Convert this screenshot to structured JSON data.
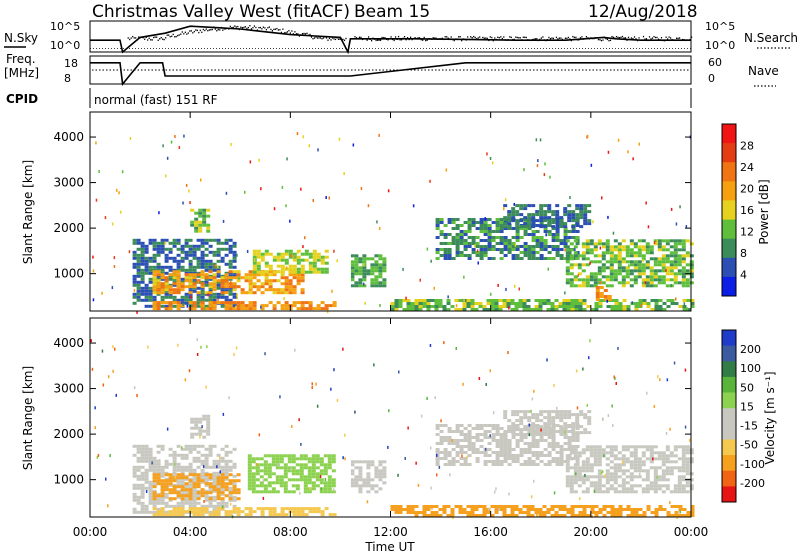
{
  "header": {
    "title": "Christmas Valley West (fitACF)",
    "beam": "Beam 15",
    "date": "12/Aug/2018"
  },
  "top_panels": {
    "nsky_label": "N.Sky",
    "nsky_ticks": [
      "10^5",
      "10^0"
    ],
    "nsearch_label": "N.Search",
    "nsearch_ticks": [
      "10^5",
      "10^0"
    ],
    "freq_label_1": "Freq.",
    "freq_label_2": "[MHz]",
    "freq_ticks": [
      "18",
      "8"
    ],
    "nave_label": "Nave",
    "nave_ticks": [
      "60",
      "0"
    ],
    "cpid_label": "CPID",
    "cpid_text": "normal (fast) 151 RF"
  },
  "colors": {
    "power": [
      "#0a1ee6",
      "#2c4fb4",
      "#3c8c5a",
      "#5fbf3c",
      "#e6d21e",
      "#f5a00f",
      "#f07314",
      "#e63c14",
      "#f01414"
    ],
    "velocity": [
      "#e61414",
      "#f06414",
      "#f5a01e",
      "#f5c850",
      "#c8c8c0",
      "#c8c8c0",
      "#8cd250",
      "#5ab43c",
      "#327d46",
      "#3c5aa0",
      "#1e3cc8"
    ]
  },
  "chart_data": [
    {
      "type": "line",
      "name": "N.Sky / N.Search",
      "x": [
        0,
        1.2,
        1.3,
        2,
        3,
        4,
        5,
        6,
        7,
        8,
        9,
        10,
        10.3,
        10.4,
        11,
        13,
        15,
        17,
        19,
        20.5,
        21,
        22,
        24
      ],
      "values": [
        0.35,
        0.35,
        -1,
        0.45,
        0.6,
        0.85,
        0.8,
        0.75,
        0.65,
        0.55,
        0.5,
        0.45,
        -1,
        0.4,
        0.4,
        0.4,
        0.38,
        0.35,
        0.35,
        0.45,
        0.4,
        0.35,
        0.35
      ]
    },
    {
      "type": "line",
      "name": "Freq / Nave",
      "x": [
        0,
        1.2,
        1.3,
        2,
        2.9,
        3,
        10.3,
        10.4,
        15,
        24
      ],
      "values": [
        0.8,
        0.8,
        0,
        0.8,
        0.8,
        0.25,
        0.25,
        0.25,
        0.8,
        0.8
      ]
    },
    {
      "type": "heatmap",
      "title": "Power",
      "xlabel": "Time UT",
      "ylabel": "Slant Range [km]",
      "colorbar_label": "Power [dB]",
      "colorbar_ticks": [
        "28",
        "24",
        "20",
        "16",
        "12",
        "8",
        "4"
      ],
      "xlim": [
        0,
        24
      ],
      "ylim": [
        180,
        4550
      ],
      "x_ticks": [
        "00:00",
        "04:00",
        "08:00",
        "12:00",
        "16:00",
        "20:00",
        "00:00"
      ],
      "y_ticks": [
        "1000",
        "2000",
        "3000",
        "4000"
      ],
      "regions": [
        {
          "x": [
            1.7,
            5.8
          ],
          "r": [
            250,
            1700
          ],
          "value": 10
        },
        {
          "x": [
            2.5,
            8.5
          ],
          "r": [
            550,
            1050
          ],
          "value": 24
        },
        {
          "x": [
            2.5,
            9.8
          ],
          "r": [
            200,
            380
          ],
          "value": 26
        },
        {
          "x": [
            6.5,
            9.5
          ],
          "r": [
            1000,
            1500
          ],
          "value": 18
        },
        {
          "x": [
            4.0,
            4.7
          ],
          "r": [
            1900,
            2400
          ],
          "value": 16
        },
        {
          "x": [
            10.4,
            11.8
          ],
          "r": [
            700,
            1400
          ],
          "value": 14
        },
        {
          "x": [
            12.0,
            24.0
          ],
          "r": [
            180,
            400
          ],
          "value": 16
        },
        {
          "x": [
            13.8,
            19.5
          ],
          "r": [
            1300,
            2200
          ],
          "value": 12
        },
        {
          "x": [
            16.5,
            20.0
          ],
          "r": [
            2000,
            2500
          ],
          "value": 10
        },
        {
          "x": [
            19.0,
            24.0
          ],
          "r": [
            700,
            1700
          ],
          "value": 16
        },
        {
          "x": [
            20.2,
            20.8
          ],
          "r": [
            400,
            700
          ],
          "value": 26
        }
      ]
    },
    {
      "type": "heatmap",
      "title": "Velocity",
      "xlabel": "Time UT",
      "ylabel": "Slant Range [km]",
      "colorbar_label": "Velocity [m s⁻¹]",
      "colorbar_ticks": [
        "200",
        "100",
        "50",
        "15",
        "-15",
        "-50",
        "-100",
        "-200"
      ],
      "xlim": [
        0,
        24
      ],
      "ylim": [
        180,
        4550
      ],
      "x_ticks": [
        "00:00",
        "04:00",
        "08:00",
        "12:00",
        "16:00",
        "20:00",
        "00:00"
      ],
      "y_ticks": [
        "1000",
        "2000",
        "3000",
        "4000"
      ],
      "regions": [
        {
          "x": [
            1.7,
            5.8
          ],
          "r": [
            250,
            1700
          ],
          "value": 0
        },
        {
          "x": [
            2.5,
            6.0
          ],
          "r": [
            550,
            1100
          ],
          "value": -60
        },
        {
          "x": [
            6.3,
            9.8
          ],
          "r": [
            700,
            1500
          ],
          "value": 40
        },
        {
          "x": [
            2.5,
            9.8
          ],
          "r": [
            200,
            380
          ],
          "value": -40
        },
        {
          "x": [
            4.0,
            4.7
          ],
          "r": [
            1900,
            2400
          ],
          "value": 0
        },
        {
          "x": [
            10.4,
            11.8
          ],
          "r": [
            700,
            1400
          ],
          "value": 0
        },
        {
          "x": [
            12.0,
            24.0
          ],
          "r": [
            180,
            400
          ],
          "value": -70
        },
        {
          "x": [
            13.8,
            19.5
          ],
          "r": [
            1300,
            2200
          ],
          "value": 0
        },
        {
          "x": [
            16.5,
            20.0
          ],
          "r": [
            2000,
            2500
          ],
          "value": 0
        },
        {
          "x": [
            19.0,
            24.0
          ],
          "r": [
            700,
            1700
          ],
          "value": 0
        }
      ]
    }
  ]
}
